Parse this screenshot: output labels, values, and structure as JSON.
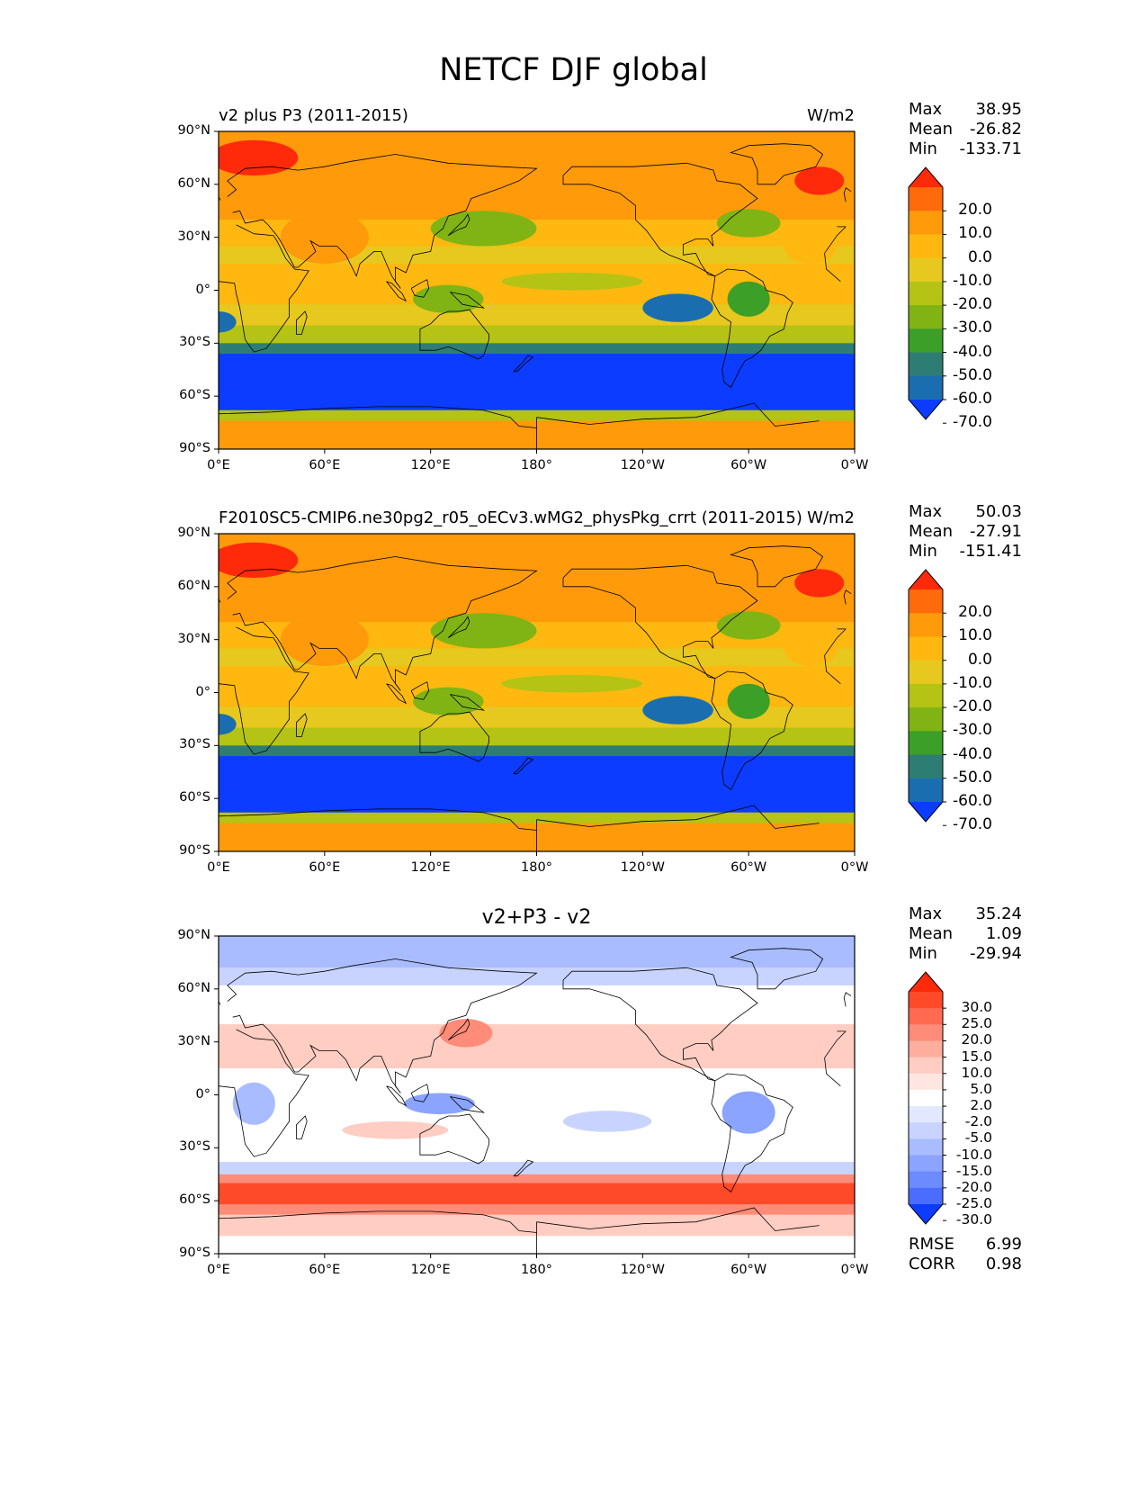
{
  "title": "NETCF DJF global",
  "axes": {
    "lat_ticks": [
      "90°N",
      "60°N",
      "30°N",
      "0°",
      "30°S",
      "60°S",
      "90°S"
    ],
    "lon_ticks": [
      "0°E",
      "60°E",
      "120°E",
      "180°",
      "120°W",
      "60°W",
      "0°W"
    ]
  },
  "panels": [
    {
      "id": "test",
      "left_title": "v2 plus P3 (2011-2015)",
      "right_title": "W/m2",
      "center_title": "",
      "stats": {
        "max_label": "Max",
        "max": "38.95",
        "mean_label": "Mean",
        "mean": "-26.82",
        "min_label": "Min",
        "min": "-133.71"
      },
      "colorbar": {
        "labels": [
          "20.0",
          "10.0",
          "0.0",
          "-10.0",
          "-20.0",
          "-30.0",
          "-40.0",
          "-50.0",
          "-60.0",
          "-70.0"
        ],
        "colors": [
          "#ff2a0a",
          "#ff6a0a",
          "#ff9a0a",
          "#ffb80f",
          "#e6c81e",
          "#b4c314",
          "#7fb414",
          "#3c9f28",
          "#2d7d74",
          "#1a6eaf",
          "#0b3cff"
        ]
      }
    },
    {
      "id": "reference",
      "left_title": "F2010SC5-CMIP6.ne30pg2_r05_oECv3.wMG2_physPkg_crrt (2011-2015)",
      "right_title": "W/m2",
      "center_title": "",
      "stats": {
        "max_label": "Max",
        "max": "50.03",
        "mean_label": "Mean",
        "mean": "-27.91",
        "min_label": "Min",
        "min": "-151.41"
      },
      "colorbar": {
        "labels": [
          "20.0",
          "10.0",
          "0.0",
          "-10.0",
          "-20.0",
          "-30.0",
          "-40.0",
          "-50.0",
          "-60.0",
          "-70.0"
        ],
        "colors": [
          "#ff2a0a",
          "#ff6a0a",
          "#ff9a0a",
          "#ffb80f",
          "#e6c81e",
          "#b4c314",
          "#7fb414",
          "#3c9f28",
          "#2d7d74",
          "#1a6eaf",
          "#0b3cff"
        ]
      }
    },
    {
      "id": "difference",
      "left_title": "",
      "right_title": "",
      "center_title": "v2+P3 - v2",
      "stats": {
        "max_label": "Max",
        "max": "35.24",
        "mean_label": "Mean",
        "mean": "1.09",
        "min_label": "Min",
        "min": "-29.94"
      },
      "colorbar": {
        "labels": [
          "30.0",
          "25.0",
          "20.0",
          "15.0",
          "10.0",
          "5.0",
          "2.0",
          "-2.0",
          "-5.0",
          "-10.0",
          "-15.0",
          "-20.0",
          "-25.0",
          "-30.0"
        ],
        "colors": [
          "#ff2a0a",
          "#ff4a2a",
          "#ff6a50",
          "#ff8c78",
          "#ffae9e",
          "#ffcdc2",
          "#ffe6e0",
          "#ffffff",
          "#e2e8ff",
          "#c8d4ff",
          "#a9bcff",
          "#8aa4ff",
          "#6b8bff",
          "#4a6dff",
          "#0b3cff"
        ]
      },
      "extra": {
        "rmse_label": "RMSE",
        "rmse": "6.99",
        "corr_label": "CORR",
        "corr": "0.98"
      }
    }
  ]
}
